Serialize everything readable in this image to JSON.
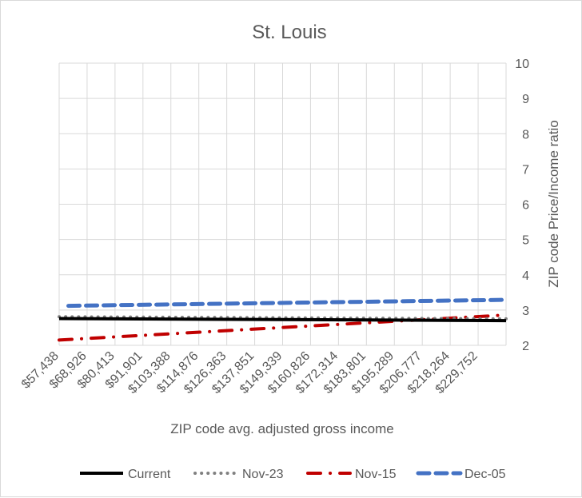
{
  "chart_data": {
    "type": "line",
    "title": "St. Louis",
    "xlabel": "ZIP code avg. adjusted gross income",
    "ylabel": "ZIP code Price/Income ratio",
    "x_tick_labels": [
      "$57,438",
      "$68,926",
      "$80,413",
      "$91,901",
      "$103,388",
      "$114,876",
      "$126,363",
      "$137,851",
      "$149,339",
      "$160,826",
      "$172,314",
      "$183,801",
      "$195,289",
      "$206,777",
      "$218,264",
      "$229,752"
    ],
    "x_range": [
      57438,
      229752
    ],
    "ylim": [
      2,
      10
    ],
    "y_ticks": [
      2,
      3,
      4,
      5,
      6,
      7,
      8,
      9,
      10
    ],
    "y_axis_side": "right",
    "grid": true,
    "legend_position": "bottom",
    "series": [
      {
        "name": "Current",
        "color": "#000000",
        "style": "solid",
        "start": [
          57438,
          2.76
        ],
        "end": [
          229752,
          2.7
        ]
      },
      {
        "name": "Nov-23",
        "color": "#808080",
        "style": "dotted",
        "start": [
          57438,
          2.81
        ],
        "end": [
          229752,
          2.75
        ]
      },
      {
        "name": "Nov-15",
        "color": "#c00000",
        "style": "dash-dot",
        "start": [
          57438,
          2.15
        ],
        "end": [
          229752,
          2.86
        ]
      },
      {
        "name": "Dec-05",
        "color": "#4472c4",
        "style": "dashed",
        "start": [
          61000,
          3.12
        ],
        "end": [
          229752,
          3.29
        ]
      }
    ]
  }
}
